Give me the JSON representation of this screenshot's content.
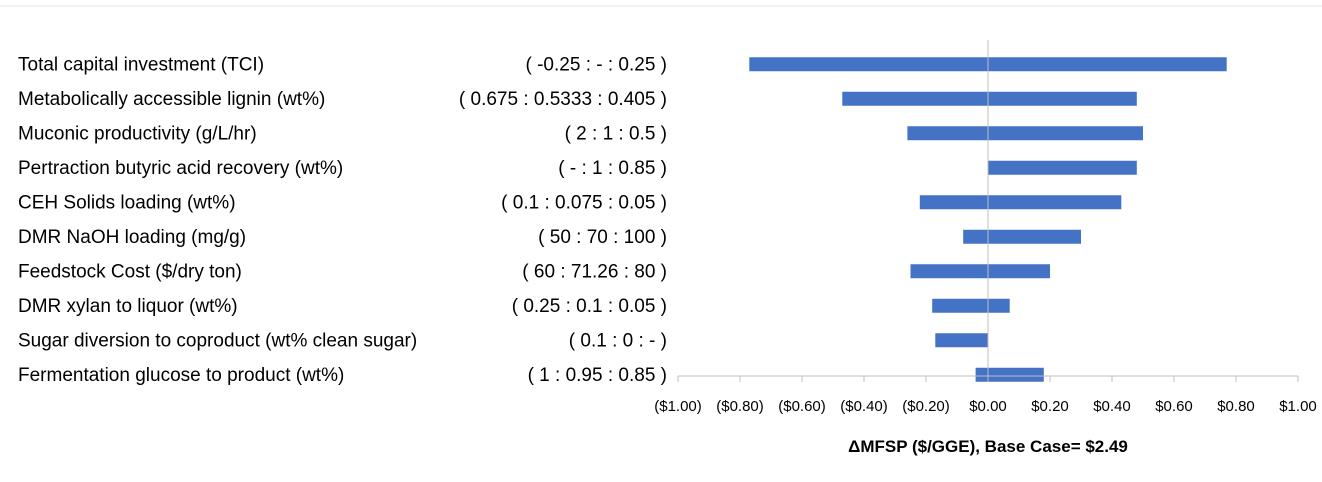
{
  "chart_data": {
    "type": "bar",
    "orientation": "horizontal",
    "style": "tornado",
    "categories": [
      "Total capital investment (TCI)",
      "Metabolically accessible lignin (wt%)",
      "Muconic productivity (g/L/hr)",
      "Pertraction butyric acid recovery (wt%)",
      "CEH Solids loading (wt%)",
      "DMR NaOH loading (mg/g)",
      "Feedstock Cost ($/dry ton)",
      "DMR xylan to liquor (wt%)",
      "Sugar diversion to coproduct (wt% clean sugar)",
      "Fermentation glucose to product (wt%)"
    ],
    "ranges": [
      "( -0.25 : - : 0.25 )",
      "( 0.675 : 0.5333 : 0.405 )",
      "( 2 : 1 : 0.5 )",
      "( - : 1 : 0.85 )",
      "( 0.1 : 0.075 : 0.05 )",
      "( 50 : 70 : 100 )",
      "( 60 : 71.26 : 80 )",
      "( 0.25 : 0.1 : 0.05 )",
      "( 0.1 : 0 : - )",
      "( 1 : 0.95 : 0.85 )"
    ],
    "low_values": [
      -0.77,
      -0.47,
      -0.26,
      0.0,
      -0.22,
      -0.08,
      -0.25,
      -0.18,
      -0.17,
      -0.04
    ],
    "high_values": [
      0.77,
      0.48,
      0.5,
      0.48,
      0.43,
      0.3,
      0.2,
      0.07,
      0.0,
      0.18
    ],
    "xlim": [
      -1.0,
      1.0
    ],
    "x_ticks": [
      -1.0,
      -0.8,
      -0.6,
      -0.4,
      -0.2,
      0.0,
      0.2,
      0.4,
      0.6,
      0.8,
      1.0
    ],
    "x_tick_labels": [
      "($1.00)",
      "($0.80)",
      "($0.60)",
      "($0.40)",
      "($0.20)",
      "$0.00",
      "$0.20",
      "$0.40",
      "$0.60",
      "$0.80",
      "$1.00"
    ],
    "xlabel": "ΔMFSP ($/GGE), Base Case= $2.49",
    "bar_color": "#4472C4",
    "grid": false,
    "legend": "none"
  }
}
